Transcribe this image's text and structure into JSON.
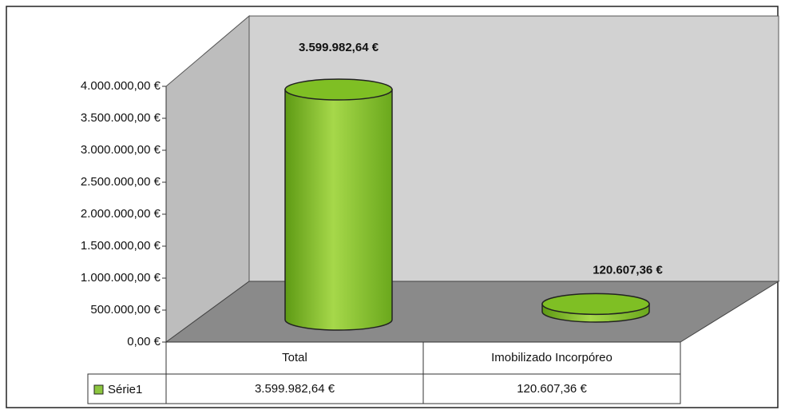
{
  "chart_data": {
    "type": "bar3d",
    "categories": [
      "Total",
      "Imobilizado Incorpóreo"
    ],
    "series": [
      {
        "name": "Série1",
        "color": "#8cc63f",
        "values": [
          3599982.64,
          120607.36
        ],
        "value_labels": [
          "3.599.982,64 €",
          "120.607,36 €"
        ]
      }
    ],
    "ylim": [
      0,
      4000000
    ],
    "yticks": [
      {
        "value": 0,
        "label": "0,00 €"
      },
      {
        "value": 500000,
        "label": "500.000,00 €"
      },
      {
        "value": 1000000,
        "label": "1.000.000,00 €"
      },
      {
        "value": 1500000,
        "label": "1.500.000,00 €"
      },
      {
        "value": 2000000,
        "label": "2.000.000,00 €"
      },
      {
        "value": 2500000,
        "label": "2.500.000,00 €"
      },
      {
        "value": 3000000,
        "label": "3.000.000,00 €"
      },
      {
        "value": 3500000,
        "label": "3.500.000,00 €"
      },
      {
        "value": 4000000,
        "label": "4.000.000,00 €"
      }
    ],
    "data_table": true
  }
}
